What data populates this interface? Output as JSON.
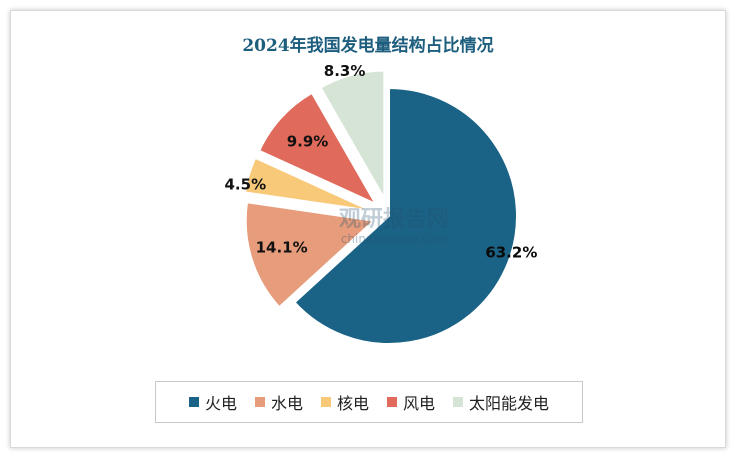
{
  "chart_data": {
    "type": "pie",
    "title": "2024年我国发电量结构占比情况",
    "categories": [
      "火电",
      "水电",
      "核电",
      "风电",
      "太阳能发电"
    ],
    "values": [
      63.2,
      14.1,
      4.5,
      9.9,
      8.3
    ],
    "value_labels": [
      "63.2%",
      "14.1%",
      "4.5%",
      "9.9%",
      "8.3%"
    ],
    "colors": [
      "#1b6386",
      "#e79c7c",
      "#f8c979",
      "#e06a5b",
      "#d6e4d6"
    ],
    "legend_position": "bottom",
    "exploded": true
  },
  "watermark": {
    "line1": "观研报告网",
    "line2": "chinabaogao.com"
  }
}
